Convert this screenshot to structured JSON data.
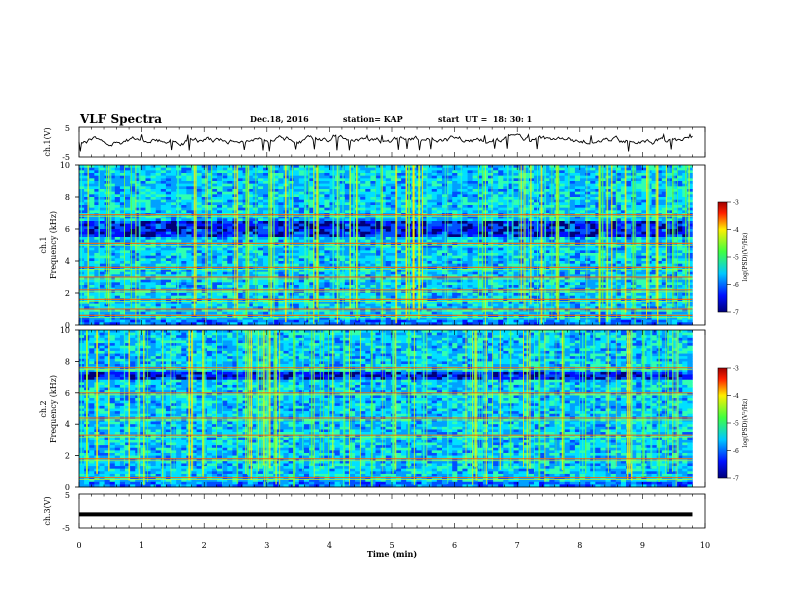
{
  "header": {
    "title": "VLF Spectra",
    "date": "Dec.18, 2016",
    "station": "station= KAP",
    "start_ut": "start  UT =  18: 30: 1"
  },
  "chart_data": [
    {
      "type": "line",
      "panel": "ch.1 waveform",
      "ylabel": "ch.1(V)",
      "xlim": [
        0,
        10
      ],
      "ylim": [
        -5,
        5
      ],
      "yticks": [
        "5",
        "-5"
      ],
      "series": [
        {
          "values_note_free": true,
          "mean": 0.6,
          "range": [
            -3.2,
            2.6
          ]
        }
      ]
    },
    {
      "type": "heatmap",
      "panel": "ch.1 spectrogram",
      "ylabel_line1": "ch.1",
      "ylabel_line2": "Frequency (kHz)",
      "xlim": [
        0,
        9.8
      ],
      "ylim": [
        0,
        10
      ],
      "yticks": [
        "0",
        "2",
        "4",
        "6",
        "8",
        "10"
      ],
      "colorbar": {
        "label": "log(PSD)(V²/Hz)",
        "range": [
          -7,
          -3
        ],
        "ticks": [
          "-3",
          "-4",
          "-5",
          "-6",
          "-7"
        ]
      },
      "dark_bands_khz": [
        [
          5.5,
          6.5
        ]
      ],
      "bright_lines_khz": [
        0.6,
        1.0,
        1.6,
        2.2,
        3.0,
        3.6,
        5.1,
        6.9
      ]
    },
    {
      "type": "heatmap",
      "panel": "ch.2 spectrogram",
      "ylabel_line1": "ch.2",
      "ylabel_line2": "Frequency (kHz)",
      "xlim": [
        0,
        9.8
      ],
      "ylim": [
        0,
        10
      ],
      "yticks": [
        "0",
        "2",
        "4",
        "6",
        "8",
        "10"
      ],
      "colorbar": {
        "label": "log(PSD)(V²/Hz)",
        "range": [
          -7,
          -3
        ],
        "ticks": [
          "-3",
          "-4",
          "-5",
          "-6",
          "-7"
        ]
      },
      "dark_bands_khz": [
        [
          6.8,
          7.4
        ]
      ],
      "bright_lines_khz": [
        0.6,
        1.8,
        3.3,
        4.4,
        6.0,
        7.6
      ]
    },
    {
      "type": "line",
      "panel": "ch.3 waveform",
      "ylabel": "ch.3(V)",
      "xlim": [
        0,
        10
      ],
      "ylim": [
        -5,
        5
      ],
      "yticks": [
        "5",
        "-5"
      ],
      "series": [
        {
          "values": [
            -1,
            -1
          ]
        }
      ]
    }
  ],
  "xaxis": {
    "label": "Time (min)",
    "ticks": [
      "0",
      "1",
      "2",
      "3",
      "4",
      "5",
      "6",
      "7",
      "8",
      "9",
      "10"
    ]
  }
}
